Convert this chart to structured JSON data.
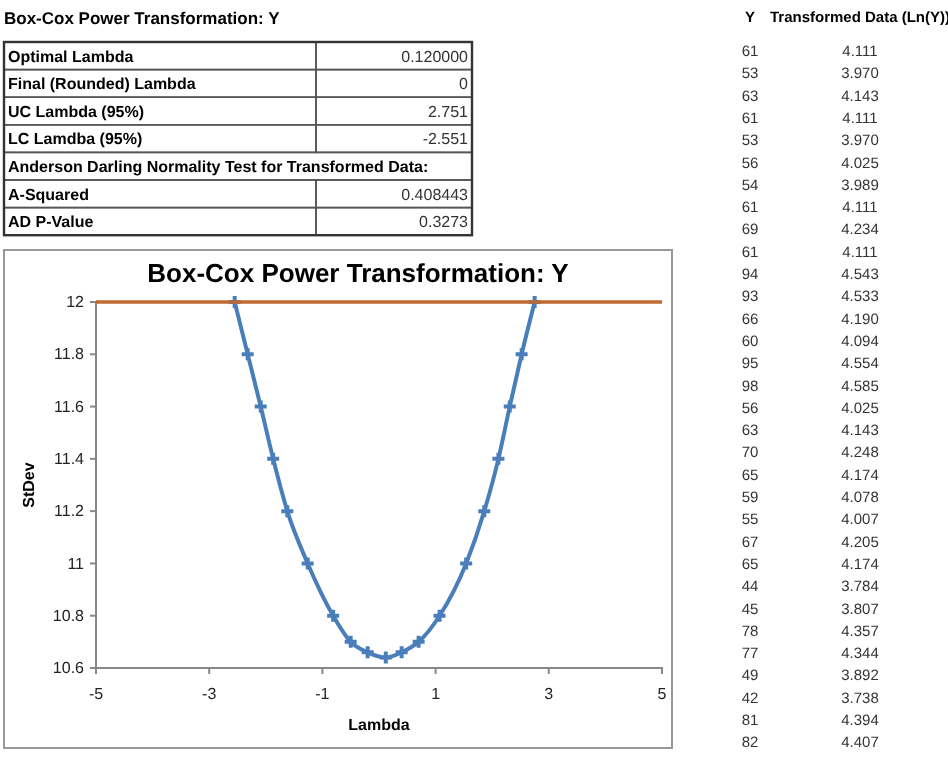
{
  "chart_data": [
    {
      "type": "other",
      "title": "Box-Cox Power Transformation: Y",
      "annotations": [
        "Anderson Darling Normality Test for Transformed Data:"
      ],
      "categories": [
        "Optimal Lambda",
        "Final (Rounded) Lambda",
        "UC Lambda (95%)",
        "LC Lamdba (95%)",
        "A-Squared",
        "AD P-Value"
      ],
      "value_labels": [
        "0.120000",
        "0",
        "2.751",
        "-2.551",
        "0.408443",
        "0.3273"
      ]
    },
    {
      "type": "line",
      "title": "Box-Cox Power Transformation: Y",
      "xlabel": "Lambda",
      "ylabel": "StDev",
      "x": [
        -2.55,
        -2.32,
        -2.09,
        -1.87,
        -1.62,
        -1.26,
        -0.81,
        -0.5,
        -0.2,
        0.12,
        0.4,
        0.7,
        1.07,
        1.54,
        1.86,
        2.11,
        2.31,
        2.52,
        2.75
      ],
      "series": [
        {
          "color": "#4a7ebb",
          "values": [
            12,
            11.8,
            11.6,
            11.4,
            11.2,
            11.0,
            10.8,
            10.7,
            10.66,
            10.64,
            10.66,
            10.7,
            10.8,
            11.0,
            11.2,
            11.4,
            11.6,
            11.8,
            12
          ]
        }
      ],
      "xlim": [
        -5,
        5
      ],
      "xticks": [
        -5,
        -3,
        -1,
        1,
        3,
        5
      ],
      "ylim": [
        10.6,
        12
      ],
      "yticks": [
        10.6,
        10.8,
        11,
        11.2,
        11.4,
        11.6,
        11.8,
        12
      ],
      "ref_lines": [
        {
          "axis": "y",
          "value": 12,
          "color": "#be6a32"
        }
      ],
      "marker": "cross",
      "line_style": "solid",
      "grid": false
    },
    {
      "type": "other",
      "annotations": [
        "Y",
        "Transformed Data (Ln(Y))"
      ],
      "categories": [
        "61",
        "53",
        "63",
        "61",
        "53",
        "56",
        "54",
        "61",
        "69",
        "61",
        "94",
        "93",
        "66",
        "60",
        "95",
        "98",
        "56",
        "63",
        "70",
        "65",
        "59",
        "55",
        "67",
        "65",
        "44",
        "45",
        "78",
        "77",
        "49",
        "42",
        "81",
        "82"
      ],
      "value_labels": [
        "4.111",
        "3.970",
        "4.143",
        "4.111",
        "3.970",
        "4.025",
        "3.989",
        "4.111",
        "4.234",
        "4.111",
        "4.543",
        "4.533",
        "4.190",
        "4.094",
        "4.554",
        "4.585",
        "4.025",
        "4.143",
        "4.248",
        "4.174",
        "4.078",
        "4.007",
        "4.205",
        "4.174",
        "3.784",
        "3.807",
        "4.357",
        "4.344",
        "3.892",
        "3.738",
        "4.394",
        "4.407"
      ]
    }
  ]
}
